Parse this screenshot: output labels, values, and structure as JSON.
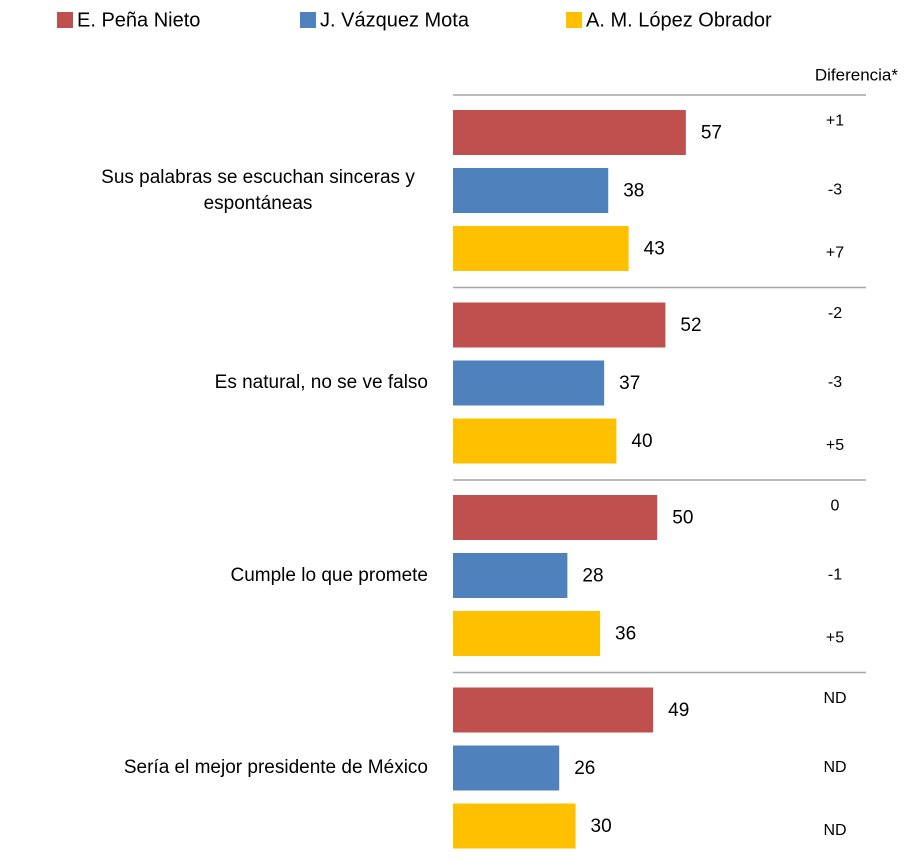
{
  "chart_data": {
    "type": "hbar",
    "categories": [
      "Sus palabras se escuchan sinceras y espontáneas",
      "Es natural, no se ve falso",
      "Cumple lo que promete",
      "Sería el mejor presidente de México"
    ],
    "difference_header": "Diferencia*",
    "series": [
      {
        "name": "E. Peña Nieto",
        "color": "#c0504d",
        "values": [
          57,
          52,
          50,
          49
        ],
        "difference": [
          "+1",
          "-2",
          "0",
          "ND"
        ]
      },
      {
        "name": "J. Vázquez Mota",
        "color": "#4f81bd",
        "values": [
          38,
          37,
          28,
          26
        ],
        "difference": [
          "-3",
          "-3",
          "-1",
          "ND"
        ]
      },
      {
        "name": "A. M. López Obrador",
        "color": "#ffc000",
        "values": [
          43,
          40,
          36,
          30
        ],
        "difference": [
          "+7",
          "+5",
          "+5",
          "ND"
        ]
      }
    ]
  }
}
